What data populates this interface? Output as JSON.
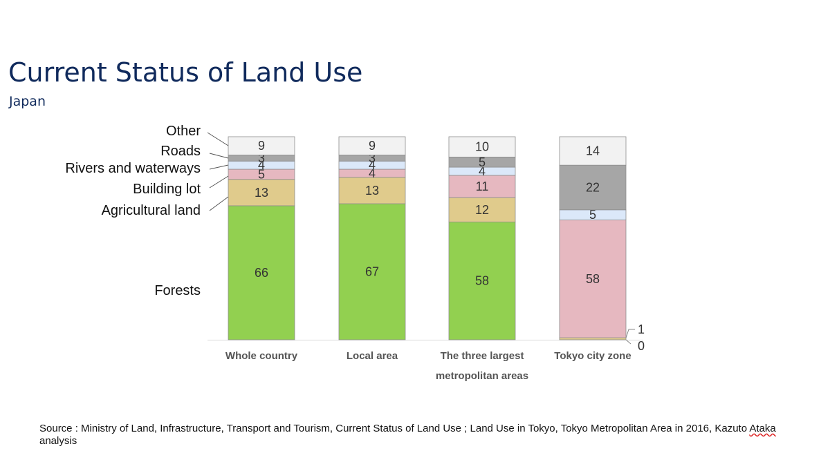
{
  "title": "Current Status of Land Use",
  "subtitle": "Japan",
  "source": {
    "prefix": "Source :  Ministry of Land, Infrastructure, Transport and Tourism, Current Status of Land Use ; Land Use in Tokyo, Tokyo Metropolitan Area in 2016, Kazuto ",
    "underlined": "Ataka",
    "suffix": " analysis"
  },
  "colors": {
    "Forests": "#92d050",
    "Agricultural land": "#e0cb8c",
    "Building lot": "#e6b8c0",
    "Rivers and waterways": "#dbe8f9",
    "Roads": "#a6a6a6",
    "Other": "#f2f2f2"
  },
  "chart_data": {
    "type": "bar",
    "stacked": true,
    "categories": [
      [
        "Whole country"
      ],
      [
        "Local area"
      ],
      [
        "The three largest",
        "metropolitan areas"
      ],
      [
        "Tokyo city zone"
      ]
    ],
    "series": [
      {
        "name": "Forests",
        "values": [
          66,
          67,
          58,
          0
        ]
      },
      {
        "name": "Agricultural land",
        "values": [
          13,
          13,
          12,
          1
        ]
      },
      {
        "name": "Building lot",
        "values": [
          5,
          4,
          11,
          58
        ]
      },
      {
        "name": "Rivers and waterways",
        "values": [
          4,
          4,
          4,
          5
        ]
      },
      {
        "name": "Roads",
        "values": [
          3,
          3,
          5,
          22
        ]
      },
      {
        "name": "Other",
        "values": [
          9,
          9,
          10,
          14
        ]
      }
    ],
    "ylim": [
      0,
      100
    ],
    "legend": "left",
    "grid": false
  }
}
